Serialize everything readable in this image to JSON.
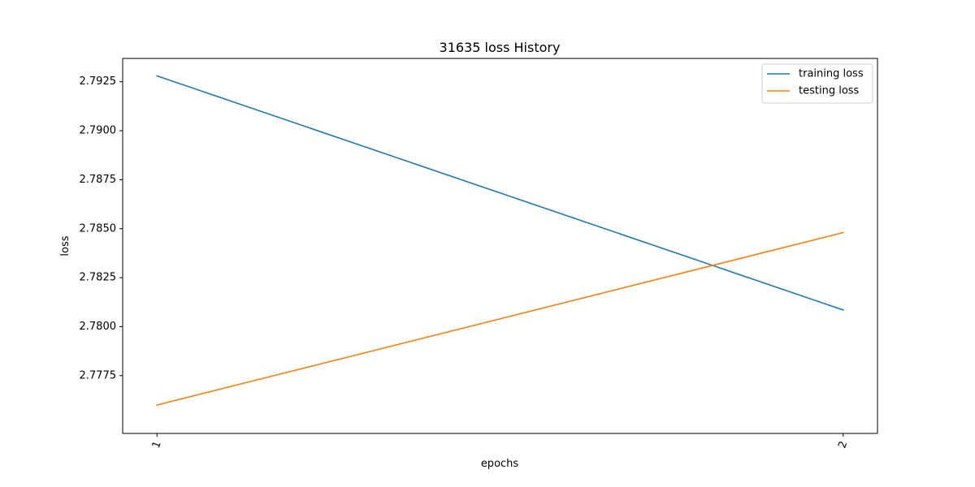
{
  "chart_data": {
    "type": "line",
    "title": "31635 loss History",
    "xlabel": "epochs",
    "ylabel": "loss",
    "x": [
      1,
      2
    ],
    "x_tick_labels": [
      "1",
      "2"
    ],
    "xlim": [
      0.95,
      2.05
    ],
    "ylim": [
      2.77455,
      2.79369
    ],
    "y_ticks": [
      2.7775,
      2.78,
      2.7825,
      2.785,
      2.7875,
      2.79,
      2.7925
    ],
    "y_tick_labels": [
      "2.7775",
      "2.7800",
      "2.7825",
      "2.7850",
      "2.7875",
      "2.7900",
      "2.7925"
    ],
    "grid": false,
    "legend_position": "top-right",
    "series": [
      {
        "name": "training loss",
        "color": "#1f77b4",
        "values": [
          2.7928,
          2.78085
        ]
      },
      {
        "name": "testing loss",
        "color": "#ff7f0e",
        "values": [
          2.776,
          2.7848
        ]
      }
    ]
  }
}
